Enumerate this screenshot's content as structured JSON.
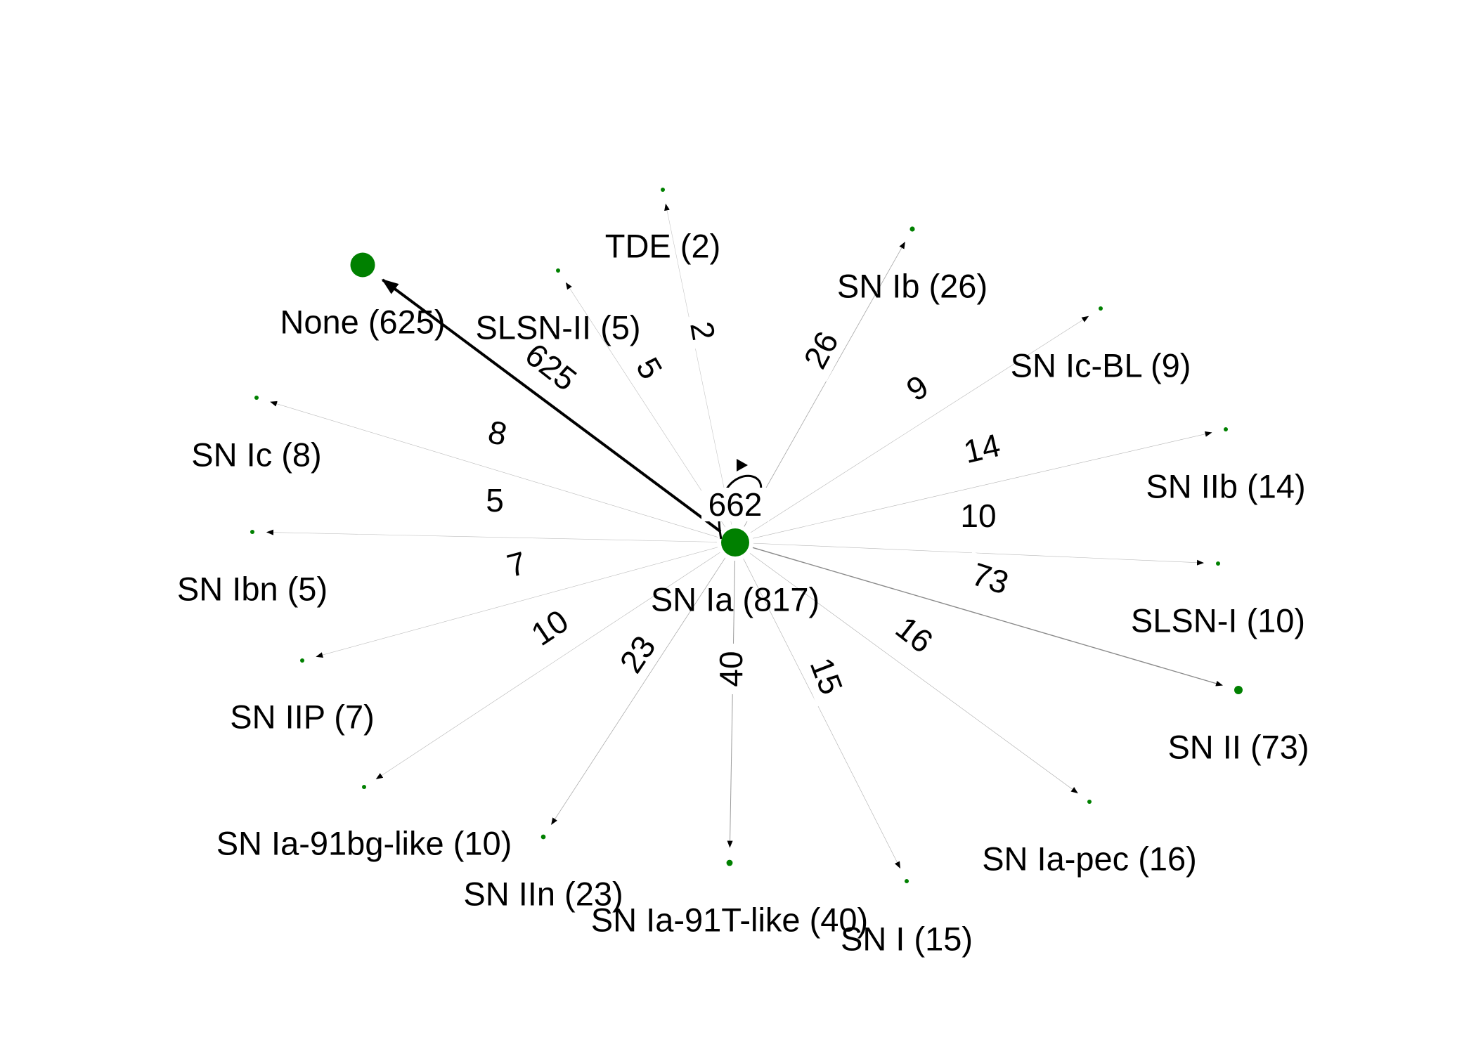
{
  "colors": {
    "node": "#008000",
    "edge": "#000000",
    "background": "#ffffff"
  },
  "center": {
    "id": "sn-ia",
    "label": "SN Ia (817)",
    "count": 817,
    "self_loop_value": "662"
  },
  "nodes": [
    {
      "id": "none",
      "label": "None (625)",
      "count": 625
    },
    {
      "id": "tde",
      "label": "TDE (2)",
      "count": 2
    },
    {
      "id": "slsn-ii",
      "label": "SLSN-II (5)",
      "count": 5
    },
    {
      "id": "sn-ib",
      "label": "SN Ib (26)",
      "count": 26
    },
    {
      "id": "sn-ic-bl",
      "label": "SN Ic-BL (9)",
      "count": 9
    },
    {
      "id": "sn-ic",
      "label": "SN Ic (8)",
      "count": 8
    },
    {
      "id": "sn-iib",
      "label": "SN IIb (14)",
      "count": 14
    },
    {
      "id": "sn-ibn",
      "label": "SN Ibn (5)",
      "count": 5
    },
    {
      "id": "slsn-i",
      "label": "SLSN-I (10)",
      "count": 10
    },
    {
      "id": "sn-iip",
      "label": "SN IIP (7)",
      "count": 7
    },
    {
      "id": "sn-ii",
      "label": "SN II (73)",
      "count": 73
    },
    {
      "id": "sn-ia-91bg-like",
      "label": "SN Ia-91bg-like (10)",
      "count": 10
    },
    {
      "id": "sn-iin",
      "label": "SN IIn (23)",
      "count": 23
    },
    {
      "id": "sn-ia-91t-like",
      "label": "SN Ia-91T-like (40)",
      "count": 40
    },
    {
      "id": "sn-i",
      "label": "SN I (15)",
      "count": 15
    },
    {
      "id": "sn-ia-pec",
      "label": "SN Ia-pec (16)",
      "count": 16
    }
  ],
  "edges": [
    {
      "target": "none",
      "value": 625,
      "label": "625"
    },
    {
      "target": "tde",
      "value": 2,
      "label": "2"
    },
    {
      "target": "slsn-ii",
      "value": 5,
      "label": "5"
    },
    {
      "target": "sn-ib",
      "value": 26,
      "label": "26"
    },
    {
      "target": "sn-ic-bl",
      "value": 9,
      "label": "9"
    },
    {
      "target": "sn-ic",
      "value": 8,
      "label": "8"
    },
    {
      "target": "sn-iib",
      "value": 14,
      "label": "14"
    },
    {
      "target": "sn-ibn",
      "value": 5,
      "label": "5"
    },
    {
      "target": "slsn-i",
      "value": 10,
      "label": "10"
    },
    {
      "target": "sn-iip",
      "value": 7,
      "label": "7"
    },
    {
      "target": "sn-ii",
      "value": 73,
      "label": "73"
    },
    {
      "target": "sn-ia-91bg-like",
      "value": 10,
      "label": "10"
    },
    {
      "target": "sn-iin",
      "value": 23,
      "label": "23"
    },
    {
      "target": "sn-ia-91t-like",
      "value": 40,
      "label": "40"
    },
    {
      "target": "sn-i",
      "value": 15,
      "label": "15"
    },
    {
      "target": "sn-ia-pec",
      "value": 16,
      "label": "16"
    }
  ]
}
